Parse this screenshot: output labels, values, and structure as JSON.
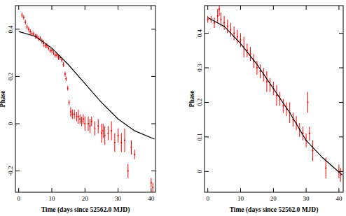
{
  "chart_data": [
    {
      "type": "scatter",
      "x_label": "Time (days since 52562.0 MJD)",
      "y_label": "Phase",
      "xlim": [
        -1,
        41.3
      ],
      "ylim": [
        -0.29,
        0.5
      ],
      "xticks": [
        0,
        10,
        20,
        30,
        40
      ],
      "yticks": [
        -0.2,
        0,
        0.2,
        0.4
      ],
      "series": [
        {
          "type": "scatter",
          "color": "#ff0000",
          "marker": "dot",
          "x": [
            1.0,
            1.5,
            2,
            2.5,
            3,
            3.5,
            4,
            4.5,
            5,
            5.5,
            6,
            6.5,
            7,
            7.5,
            8,
            8.5,
            9,
            9.5,
            10,
            10.5,
            11,
            11.5,
            12,
            12.5,
            13,
            13.5,
            14,
            14.3,
            14.8,
            15.2,
            15.7,
            16.2,
            16.8,
            17.5,
            18,
            18.5,
            19,
            19.5,
            20,
            21,
            21.5,
            22,
            23,
            24,
            25,
            25.5,
            26,
            27,
            28,
            29,
            30,
            31,
            32,
            33,
            34,
            35,
            40,
            40.5
          ],
          "values": [
            0.46,
            0.45,
            0.43,
            0.41,
            0.4,
            0.39,
            0.38,
            0.38,
            0.37,
            0.37,
            0.36,
            0.36,
            0.35,
            0.34,
            0.33,
            0.33,
            0.32,
            0.31,
            0.31,
            0.3,
            0.29,
            0.29,
            0.28,
            0.28,
            0.27,
            0.25,
            0.21,
            0.19,
            0.15,
            0.09,
            0.05,
            0.04,
            0.04,
            0.03,
            0.03,
            0.02,
            0.01,
            0.02,
            0.0,
            0.0,
            -0.01,
            0.01,
            -0.02,
            -0.01,
            -0.04,
            -0.03,
            -0.05,
            -0.04,
            -0.03,
            -0.08,
            -0.05,
            -0.08,
            -0.07,
            -0.2,
            -0.1,
            -0.13,
            -0.25,
            -0.27
          ],
          "errors": [
            0.01,
            0.01,
            0.01,
            0.01,
            0.01,
            0.01,
            0.01,
            0.01,
            0.01,
            0.01,
            0.01,
            0.01,
            0.01,
            0.015,
            0.01,
            0.01,
            0.01,
            0.01,
            0.01,
            0.01,
            0.01,
            0.01,
            0.01,
            0.01,
            0.01,
            0.01,
            0.01,
            0.01,
            0.01,
            0.01,
            0.02,
            0.02,
            0.02,
            0.02,
            0.03,
            0.02,
            0.02,
            0.02,
            0.03,
            0.03,
            0.03,
            0.02,
            0.03,
            0.03,
            0.04,
            0.03,
            0.04,
            0.03,
            0.04,
            0.04,
            0.03,
            0.04,
            0.05,
            0.03,
            0.03,
            0.02,
            0.02,
            0.02
          ]
        },
        {
          "type": "line",
          "color": "#000000",
          "line_style": "solid",
          "x": [
            0,
            5,
            10,
            15,
            20,
            25,
            30,
            35,
            41
          ],
          "values": [
            0.39,
            0.37,
            0.32,
            0.25,
            0.17,
            0.09,
            0.02,
            -0.03,
            -0.065
          ]
        }
      ]
    },
    {
      "type": "scatter",
      "x_label": "Time (days since 52562.0 MJD)",
      "y_label": "Phase",
      "xlim": [
        -1,
        41.3
      ],
      "ylim": [
        -0.06,
        0.48
      ],
      "xticks": [
        0,
        10,
        20,
        30,
        40
      ],
      "yticks": [
        0,
        0.1,
        0.2,
        0.3,
        0.4
      ],
      "series": [
        {
          "type": "scatter",
          "color": "#ff0000",
          "marker": "dot",
          "x": [
            0,
            1,
            2,
            3,
            3.5,
            4,
            5,
            6,
            7,
            8,
            9,
            10,
            11,
            12,
            13,
            14,
            15,
            16,
            17,
            18,
            19,
            20,
            21,
            22,
            23,
            24,
            25,
            26,
            27,
            28,
            29,
            30,
            30.5,
            31,
            32,
            36,
            40,
            40.5
          ],
          "values": [
            0.44,
            0.44,
            0.43,
            0.45,
            0.47,
            0.44,
            0.43,
            0.42,
            0.41,
            0.4,
            0.39,
            0.38,
            0.36,
            0.35,
            0.34,
            0.32,
            0.3,
            0.29,
            0.28,
            0.26,
            0.25,
            0.24,
            0.22,
            0.21,
            0.19,
            0.18,
            0.17,
            0.15,
            0.14,
            0.12,
            0.11,
            0.09,
            0.2,
            0.11,
            0.06,
            0.01,
            0.0,
            -0.01
          ],
          "errors": [
            0.01,
            0.01,
            0.015,
            0.02,
            0.02,
            0.02,
            0.02,
            0.02,
            0.02,
            0.02,
            0.02,
            0.02,
            0.03,
            0.02,
            0.02,
            0.02,
            0.02,
            0.02,
            0.02,
            0.03,
            0.02,
            0.02,
            0.03,
            0.02,
            0.02,
            0.02,
            0.03,
            0.02,
            0.02,
            0.02,
            0.02,
            0.02,
            0.03,
            0.02,
            0.03,
            0.03,
            0.02,
            0.02
          ]
        },
        {
          "type": "line",
          "color": "#000000",
          "line_style": "solid",
          "x": [
            0,
            5,
            10,
            15,
            20,
            25,
            30,
            35,
            41
          ],
          "values": [
            0.445,
            0.42,
            0.37,
            0.31,
            0.24,
            0.17,
            0.09,
            0.04,
            -0.01
          ]
        }
      ]
    }
  ]
}
